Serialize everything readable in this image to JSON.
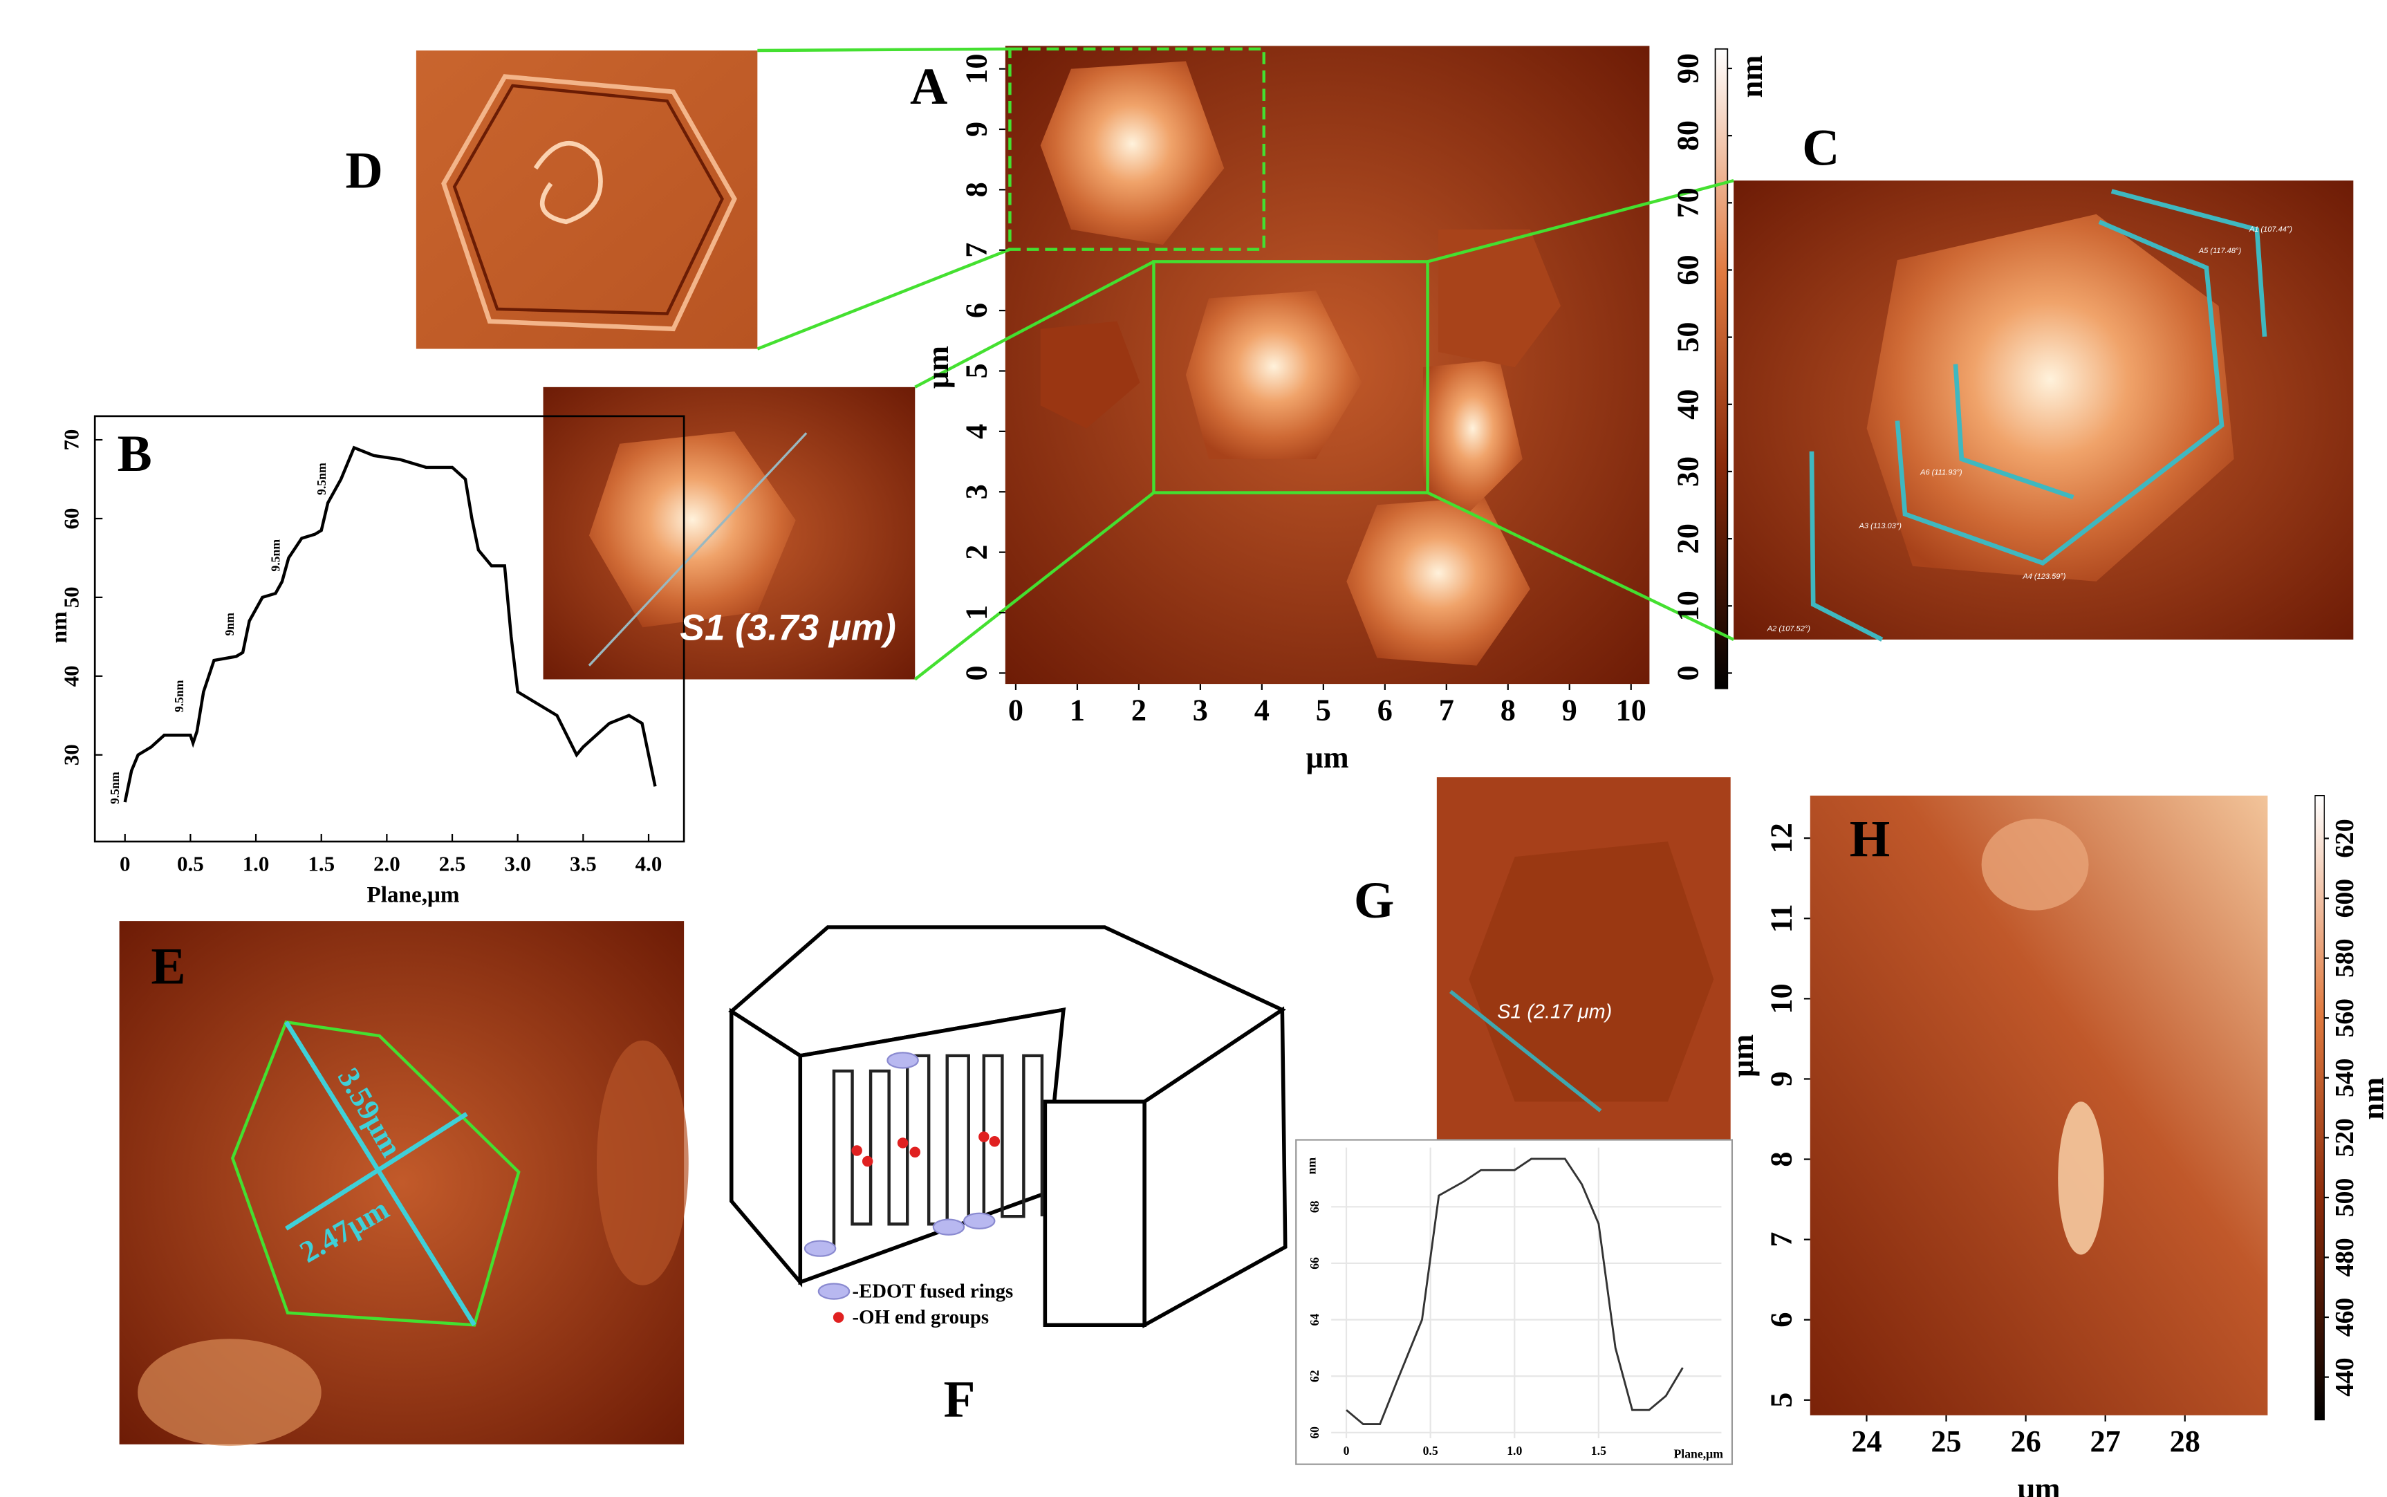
{
  "panels": {
    "A": {
      "label": "A",
      "xlabel": "μm",
      "ylabel": "μm",
      "xlim": [
        -0.17,
        10.3
      ],
      "ylim": [
        -0.18,
        10.38
      ],
      "xticks": [
        0,
        1,
        2,
        3,
        4,
        5,
        6,
        7,
        8,
        9,
        10
      ],
      "yticks": [
        0,
        1,
        2,
        3,
        4,
        5,
        6,
        7,
        8,
        9,
        10
      ],
      "colorbar": {
        "label": "nm",
        "lim": [
          -2.3,
          92.9
        ],
        "ticks": [
          0,
          10,
          20,
          30,
          40,
          50,
          60,
          70,
          80,
          90
        ]
      }
    },
    "B": {
      "label": "B",
      "scale_label": "S1 (3.73 μm)"
    },
    "C": {
      "label": "C",
      "angles": [
        "A1 (107.44°)",
        "A5 (117.48°)",
        "A6 (111.93°)",
        "A3 (113.03°)",
        "A4 (123.59°)",
        "A2 (107.52°)"
      ]
    },
    "D": {
      "label": "D"
    },
    "E": {
      "label": "E",
      "lengths": [
        "3.59μm",
        "2.47μm"
      ]
    },
    "F": {
      "label": "F",
      "legend": [
        "-EDOT fused rings",
        "-OH end groups"
      ]
    },
    "G": {
      "label": "G",
      "scale_label": "S1 (2.17 μm)"
    },
    "H": {
      "label": "H",
      "xlabel": "μm",
      "ylabel": "μm",
      "xlim": [
        23.29,
        29.04
      ],
      "ylim": [
        4.81,
        12.53
      ],
      "xticks": [
        24,
        25,
        26,
        27,
        28
      ],
      "yticks": [
        5,
        6,
        7,
        8,
        9,
        10,
        11,
        12
      ],
      "colorbar": {
        "label": "nm",
        "lim": [
          425.7,
          634.3
        ],
        "ticks": [
          440,
          460,
          480,
          500,
          520,
          540,
          560,
          580,
          600,
          620
        ]
      }
    }
  },
  "chart_data": [
    {
      "type": "line",
      "color": "#000000",
      "xlabel": "Plane,μm",
      "ylabel": "nm",
      "x": [
        0,
        0.05,
        0.1,
        0.2,
        0.3,
        0.5,
        0.52,
        0.55,
        0.6,
        0.68,
        0.85,
        0.9,
        0.95,
        1.05,
        1.15,
        1.2,
        1.25,
        1.35,
        1.45,
        1.5,
        1.55,
        1.65,
        1.75,
        1.9,
        2.1,
        2.3,
        2.5,
        2.6,
        2.65,
        2.7,
        2.8,
        2.9,
        2.95,
        3.0,
        3.1,
        3.3,
        3.45,
        3.5,
        3.7,
        3.85,
        3.95,
        4.05
      ],
      "values": [
        24,
        28,
        30,
        31,
        32.5,
        32.5,
        31.5,
        33,
        38,
        42,
        42.5,
        43,
        47,
        50,
        50.5,
        52,
        55,
        57.5,
        58,
        58.5,
        62,
        65,
        69,
        68,
        67.5,
        66.5,
        66.5,
        65,
        60,
        56,
        54,
        54,
        45,
        38,
        37,
        35,
        30,
        31,
        34,
        35,
        34,
        26
      ],
      "xlim": [
        -0.23,
        4.27
      ],
      "ylim": [
        19,
        73
      ],
      "xticks": [
        0,
        0.5,
        {
          "value": 1,
          "label": "1.0"
        },
        1.5,
        {
          "value": 2,
          "label": "2.0"
        },
        2.5,
        {
          "value": 3,
          "label": "3.0"
        },
        3.5,
        {
          "value": 4,
          "label": "4.0"
        }
      ],
      "yticks": [
        30,
        40,
        50,
        60,
        70
      ],
      "annotations": [
        "9.5nm",
        "9.5nm",
        "9nm",
        "9.5nm",
        "9.5nm"
      ]
    },
    {
      "type": "line",
      "color": "#333333",
      "xlabel": "Plane,μm",
      "ylabel": "nm",
      "x": [
        0,
        0.1,
        0.2,
        0.3,
        0.45,
        0.55,
        0.7,
        0.8,
        1.0,
        1.1,
        1.3,
        1.4,
        1.5,
        1.6,
        1.7,
        1.8,
        1.9,
        2.0
      ],
      "values": [
        60.8,
        60.3,
        60.3,
        61.8,
        64,
        68.4,
        68.9,
        69.3,
        69.3,
        69.7,
        69.7,
        68.8,
        67.4,
        63,
        60.8,
        60.8,
        61.3,
        62.3
      ],
      "xlim": [
        -0.09,
        2.23
      ],
      "ylim": [
        59.8,
        70.1
      ],
      "xticks": [
        0,
        0.5,
        {
          "value": 1,
          "label": "1.0"
        },
        1.5
      ],
      "yticks": [
        60,
        62,
        64,
        66,
        68
      ]
    }
  ]
}
